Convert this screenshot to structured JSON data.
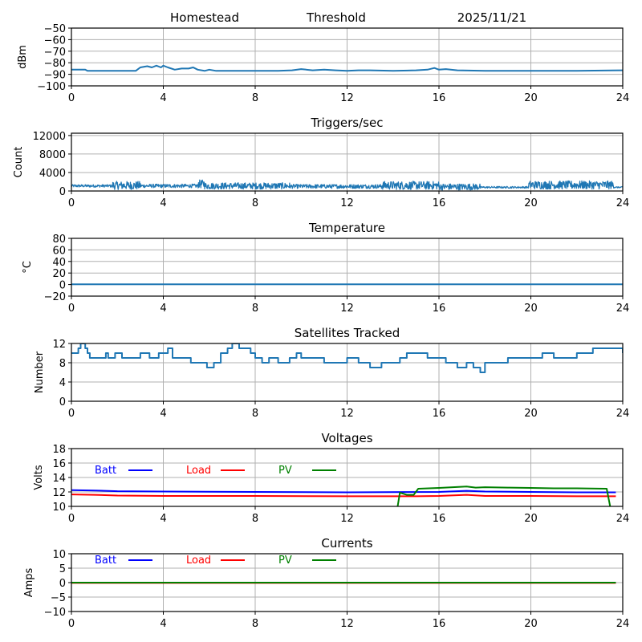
{
  "header": {
    "station": "Homestead",
    "mode": "Threshold",
    "date": "2025/11/21"
  },
  "chart_data": [
    {
      "id": "signal",
      "type": "line",
      "title": "",
      "ylabel": "dBm",
      "xlabel": "",
      "xlim": [
        0,
        24
      ],
      "ylim": [
        -100,
        -50
      ],
      "xticks": [
        0,
        4,
        8,
        12,
        16,
        20,
        24
      ],
      "yticks": [
        -100,
        -90,
        -80,
        -70,
        -60,
        -50
      ],
      "ytick_labels": [
        "−100",
        "−90",
        "−80",
        "−70",
        "−60",
        "−50"
      ],
      "grid": true,
      "series": [
        {
          "name": "signal",
          "color": "#1f77b4",
          "x": [
            0,
            0.6,
            0.7,
            1.8,
            2.8,
            3.0,
            3.3,
            3.5,
            3.7,
            3.9,
            4.0,
            4.2,
            4.5,
            4.8,
            5.1,
            5.3,
            5.5,
            5.8,
            6.0,
            6.3,
            7.0,
            8.0,
            9.0,
            9.6,
            10.0,
            10.5,
            11.0,
            11.5,
            12.0,
            12.5,
            13.0,
            14.0,
            15.0,
            15.5,
            15.8,
            16.0,
            16.3,
            16.8,
            18.0,
            20.0,
            22.0,
            24.0
          ],
          "y": [
            -86,
            -86,
            -87,
            -87,
            -87,
            -84,
            -83,
            -84,
            -82.5,
            -84,
            -82.5,
            -84,
            -86,
            -85,
            -85,
            -84,
            -86,
            -87,
            -86,
            -87,
            -87,
            -87,
            -87,
            -86.5,
            -85.5,
            -86.5,
            -86,
            -86.5,
            -87,
            -86.5,
            -86.5,
            -87,
            -86.5,
            -86,
            -84.5,
            -86,
            -85.5,
            -86.5,
            -87,
            -87,
            -87,
            -86.5
          ]
        }
      ]
    },
    {
      "id": "triggers",
      "type": "line",
      "title": "Triggers/sec",
      "ylabel": "Count",
      "xlabel": "",
      "xlim": [
        0,
        24
      ],
      "ylim": [
        0,
        12500
      ],
      "xticks": [
        0,
        4,
        8,
        12,
        16,
        20,
        24
      ],
      "yticks": [
        0,
        4000,
        8000,
        12000
      ],
      "ytick_labels": [
        "0",
        "4000",
        "8000",
        "12000"
      ],
      "grid": true,
      "series": [
        {
          "name": "triggers",
          "color": "#1f77b4",
          "noisy_segments": [
            {
              "x": [
                0,
                1.8
              ],
              "base": 1100,
              "amp": 300
            },
            {
              "x": [
                1.8,
                3.0
              ],
              "base": 1200,
              "amp": 900
            },
            {
              "x": [
                3.0,
                5.5
              ],
              "base": 1100,
              "amp": 400
            },
            {
              "x": [
                5.5,
                5.8
              ],
              "base": 1500,
              "amp": 900
            },
            {
              "x": [
                5.8,
                9.5
              ],
              "base": 1100,
              "amp": 700
            },
            {
              "x": [
                9.5,
                13.5
              ],
              "base": 1000,
              "amp": 450
            },
            {
              "x": [
                13.5,
                16.0
              ],
              "base": 1200,
              "amp": 900
            },
            {
              "x": [
                16.0,
                17.8
              ],
              "base": 900,
              "amp": 700
            },
            {
              "x": [
                17.8,
                19.9
              ],
              "base": 800,
              "amp": 200
            },
            {
              "x": [
                19.9,
                23.6
              ],
              "base": 1300,
              "amp": 900
            },
            {
              "x": [
                23.6,
                24.0
              ],
              "base": 800,
              "amp": 150
            }
          ]
        }
      ]
    },
    {
      "id": "temperature",
      "type": "line",
      "title": "Temperature",
      "ylabel": "°C",
      "xlabel": "",
      "xlim": [
        0,
        24
      ],
      "ylim": [
        -20,
        80
      ],
      "xticks": [
        0,
        4,
        8,
        12,
        16,
        20,
        24
      ],
      "yticks": [
        -20,
        0,
        20,
        40,
        60,
        80
      ],
      "ytick_labels": [
        "−20",
        "0",
        "20",
        "40",
        "60",
        "80"
      ],
      "grid": true,
      "series": [
        {
          "name": "temperature",
          "color": "#1f77b4",
          "x": [
            0,
            24
          ],
          "y": [
            0.5,
            0.5
          ]
        }
      ]
    },
    {
      "id": "satellites",
      "type": "line",
      "title": "Satellites Tracked",
      "ylabel": "Number",
      "xlabel": "",
      "xlim": [
        0,
        24
      ],
      "ylim": [
        0,
        12
      ],
      "xticks": [
        0,
        4,
        8,
        12,
        16,
        20,
        24
      ],
      "yticks": [
        0,
        4,
        8,
        12
      ],
      "ytick_labels": [
        "0",
        "4",
        "8",
        "12"
      ],
      "grid": true,
      "series": [
        {
          "name": "satellites",
          "color": "#1f77b4",
          "step": true,
          "x": [
            0,
            0.3,
            0.4,
            0.6,
            0.7,
            0.8,
            1.2,
            1.5,
            1.6,
            1.9,
            2.2,
            3.0,
            3.4,
            3.8,
            4.2,
            4.4,
            5.2,
            5.9,
            6.2,
            6.5,
            6.8,
            7.0,
            7.3,
            7.8,
            8.0,
            8.3,
            8.6,
            9.0,
            9.5,
            9.8,
            10.0,
            10.5,
            11.0,
            11.7,
            12.0,
            12.5,
            13.0,
            13.5,
            14.3,
            14.6,
            15.3,
            15.5,
            16.0,
            16.3,
            16.8,
            17.2,
            17.5,
            17.8,
            18.0,
            19.0,
            20.0,
            20.5,
            21.0,
            21.6,
            22.0,
            22.5,
            22.7,
            23.2,
            24.0
          ],
          "y": [
            10,
            11,
            12,
            11,
            10,
            9,
            9,
            10,
            9,
            10,
            9,
            10,
            9,
            10,
            11,
            9,
            8,
            7,
            8,
            10,
            11,
            12,
            11,
            10,
            9,
            8,
            9,
            8,
            9,
            10,
            9,
            9,
            8,
            8,
            9,
            8,
            7,
            8,
            9,
            10,
            10,
            9,
            9,
            8,
            7,
            8,
            7,
            6,
            8,
            9,
            9,
            10,
            9,
            9,
            10,
            10,
            11,
            11,
            10
          ]
        }
      ]
    },
    {
      "id": "voltages",
      "type": "line",
      "title": "Voltages",
      "ylabel": "Volts",
      "xlabel": "",
      "xlim": [
        0,
        24
      ],
      "ylim": [
        10,
        18
      ],
      "xticks": [
        0,
        4,
        8,
        12,
        16,
        20,
        24
      ],
      "yticks": [
        10,
        12,
        14,
        16,
        18
      ],
      "ytick_labels": [
        "10",
        "12",
        "14",
        "16",
        "18"
      ],
      "grid": true,
      "legend": {
        "placement": "top-inline",
        "entries": [
          {
            "label": "Batt",
            "color": "#0000ff"
          },
          {
            "label": "Load",
            "color": "#ff0000"
          },
          {
            "label": "PV",
            "color": "#008000"
          }
        ]
      },
      "series": [
        {
          "name": "Batt",
          "color": "#0000ff",
          "x": [
            0,
            1,
            2,
            4,
            8,
            12,
            16,
            17.2,
            18,
            20,
            22,
            23.7
          ],
          "y": [
            12.25,
            12.2,
            12.1,
            12.05,
            12.0,
            11.95,
            12.0,
            12.15,
            12.05,
            12.0,
            11.95,
            11.95
          ]
        },
        {
          "name": "Load",
          "color": "#ff0000",
          "x": [
            0,
            1,
            2,
            4,
            8,
            12,
            15,
            16,
            17.2,
            18,
            20,
            22,
            23.7
          ],
          "y": [
            11.65,
            11.6,
            11.5,
            11.45,
            11.45,
            11.4,
            11.4,
            11.45,
            11.6,
            11.45,
            11.45,
            11.4,
            11.4
          ]
        },
        {
          "name": "PV",
          "color": "#008000",
          "x": [
            14.2,
            14.3,
            14.6,
            14.9,
            15.1,
            16.0,
            17.2,
            17.6,
            18.0,
            19.0,
            20.0,
            21.0,
            22.0,
            23.3,
            23.45
          ],
          "y": [
            10.0,
            11.9,
            11.6,
            11.6,
            12.45,
            12.55,
            12.75,
            12.6,
            12.65,
            12.6,
            12.55,
            12.5,
            12.5,
            12.45,
            10.0
          ]
        }
      ]
    },
    {
      "id": "currents",
      "type": "line",
      "title": "Currents",
      "ylabel": "Amps",
      "xlabel": "",
      "xlim": [
        0,
        24
      ],
      "ylim": [
        -10,
        10
      ],
      "xticks": [
        0,
        4,
        8,
        12,
        16,
        20,
        24
      ],
      "yticks": [
        -10,
        -5,
        0,
        5,
        10
      ],
      "ytick_labels": [
        "−10",
        "−5",
        "0",
        "5",
        "10"
      ],
      "grid": true,
      "legend": {
        "placement": "top-inline",
        "entries": [
          {
            "label": "Batt",
            "color": "#0000ff"
          },
          {
            "label": "Load",
            "color": "#ff0000"
          },
          {
            "label": "PV",
            "color": "#008000"
          }
        ]
      },
      "series": [
        {
          "name": "Batt",
          "color": "#0000ff",
          "x": [
            0,
            23.7
          ],
          "y": [
            0,
            0
          ]
        },
        {
          "name": "Load",
          "color": "#ff0000",
          "x": [
            0,
            23.7
          ],
          "y": [
            -0.1,
            -0.1
          ]
        },
        {
          "name": "PV",
          "color": "#008000",
          "x": [
            0,
            23.7
          ],
          "y": [
            0,
            0
          ]
        }
      ]
    }
  ]
}
